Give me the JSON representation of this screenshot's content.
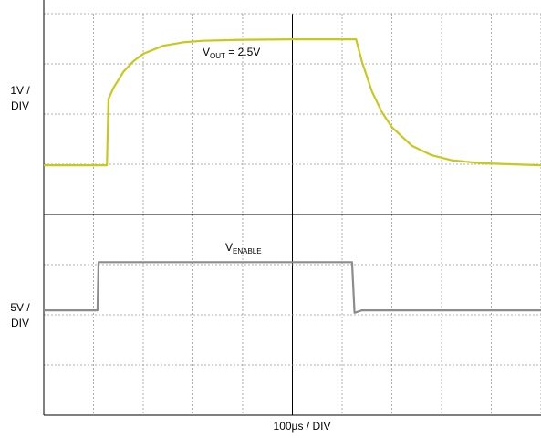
{
  "chart_data": {
    "type": "line",
    "xlabel": "100µs / DIV",
    "scale_labels": [
      [
        "1V /",
        "DIV"
      ],
      [
        "5V /",
        "DIV"
      ]
    ],
    "annotations": [
      {
        "main": "V",
        "sub": "OUT",
        "rest": " = 2.5V"
      },
      {
        "main": "V",
        "sub": "ENABLE"
      }
    ],
    "xlim": [
      0,
      1000
    ],
    "ylim": [
      0,
      8
    ],
    "xticks": [
      0,
      100,
      200,
      300,
      400,
      500,
      600,
      700,
      800,
      900,
      1000
    ],
    "yticks": [
      0,
      1,
      2,
      3,
      4,
      5,
      6,
      7,
      8
    ],
    "grid": true,
    "series": [
      {
        "color": "#c8c81e",
        "x": [
          0,
          50,
          100,
          127,
          130,
          140,
          160,
          180,
          200,
          240,
          280,
          320,
          400,
          500,
          600,
          628,
          640,
          660,
          680,
          700,
          740,
          780,
          820,
          880,
          940,
          1000
        ],
        "values": [
          4.98,
          4.98,
          4.98,
          4.98,
          6.3,
          6.52,
          6.84,
          7.05,
          7.2,
          7.36,
          7.43,
          7.46,
          7.48,
          7.49,
          7.49,
          7.49,
          7.04,
          6.45,
          6.04,
          5.74,
          5.37,
          5.18,
          5.08,
          5.02,
          5.0,
          4.98
        ]
      },
      {
        "color": "#8c8c8c",
        "x": [
          0,
          108,
          110,
          620,
          625,
          640,
          1000
        ],
        "values": [
          2.09,
          2.09,
          3.05,
          3.05,
          2.04,
          2.09,
          2.09
        ]
      }
    ]
  }
}
